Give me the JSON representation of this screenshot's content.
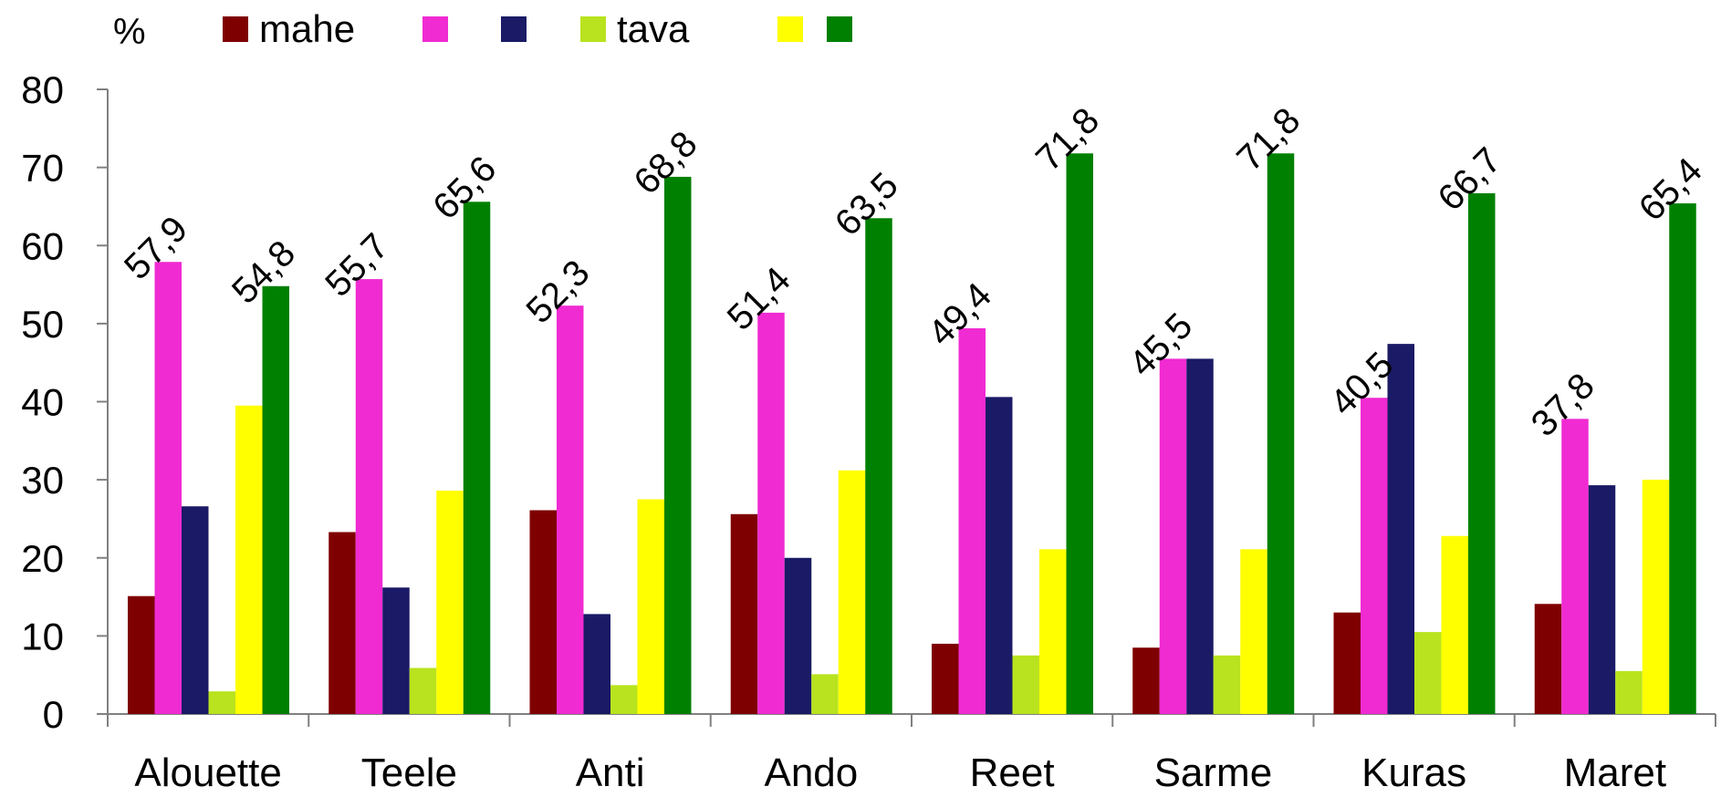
{
  "chart_data": {
    "type": "bar",
    "unit_label": "%",
    "categories": [
      "Alouette",
      "Teele",
      "Anti",
      "Ando",
      "Reet",
      "Sarme",
      "Kuras",
      "Maret"
    ],
    "ylim": [
      0,
      80
    ],
    "yticks": [
      0,
      10,
      20,
      30,
      40,
      50,
      60,
      70,
      80
    ],
    "grid": false,
    "legend_position": "top",
    "series": [
      {
        "name": "mahe",
        "color": "#7F0000",
        "values": [
          15.1,
          23.3,
          26.1,
          25.6,
          9.0,
          8.5,
          13.0,
          14.1
        ]
      },
      {
        "name": "",
        "color": "#F02BD2",
        "values": [
          57.9,
          55.7,
          52.3,
          51.4,
          49.4,
          45.5,
          40.5,
          37.8
        ],
        "data_labels": [
          "57,9",
          "55,7",
          "52,3",
          "51,4",
          "49,4",
          "45,5",
          "40,5",
          "37,8"
        ]
      },
      {
        "name": "",
        "color": "#1A1A66",
        "values": [
          26.6,
          16.2,
          12.8,
          20.0,
          40.6,
          45.5,
          47.4,
          29.3
        ]
      },
      {
        "name": "tava",
        "color": "#B8E31E",
        "values": [
          2.9,
          5.9,
          3.7,
          5.1,
          7.5,
          7.5,
          10.5,
          5.5
        ]
      },
      {
        "name": "",
        "color": "#FFFF00",
        "values": [
          39.5,
          28.6,
          27.5,
          31.2,
          21.1,
          21.1,
          22.8,
          30.0
        ]
      },
      {
        "name": "",
        "color": "#008000",
        "values": [
          54.8,
          65.6,
          68.8,
          63.5,
          71.8,
          71.8,
          66.7,
          65.4
        ],
        "data_labels": [
          "54,8",
          "65,6",
          "68,8",
          "63,5",
          "71,8",
          "71,8",
          "66,7",
          "65,4"
        ]
      }
    ]
  }
}
